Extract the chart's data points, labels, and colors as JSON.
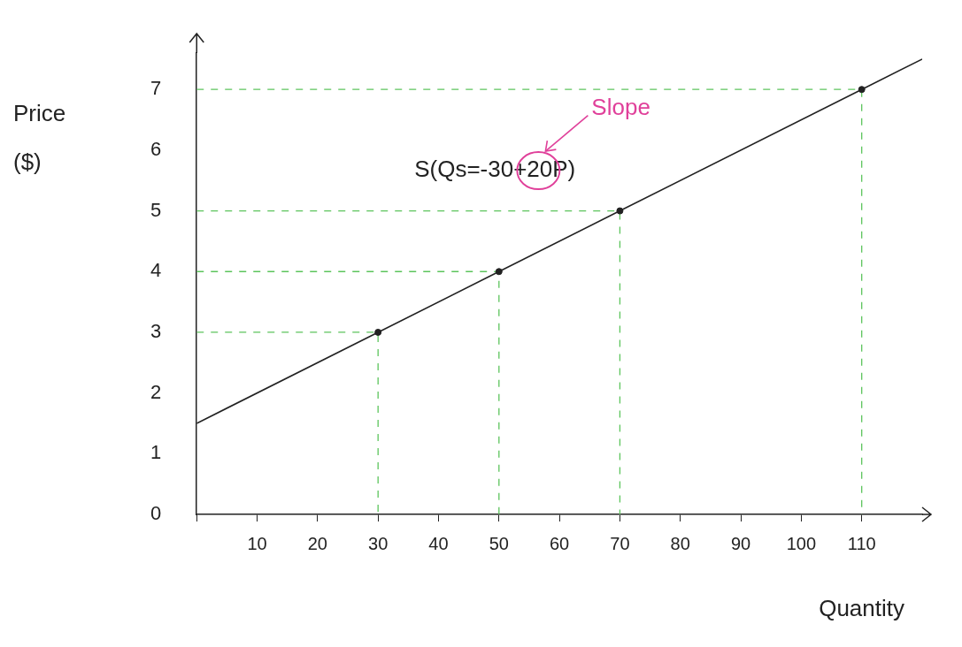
{
  "chart_data": {
    "type": "line",
    "xlabel": "Quantity",
    "ylabel": "Price ($)",
    "annotations": [
      "S(Qs=-30+20P)",
      "Slope"
    ],
    "xlim": [
      0,
      120
    ],
    "ylim": [
      0,
      7.6
    ],
    "xticks": [
      {
        "value": 0,
        "label": null
      },
      10,
      20,
      30,
      40,
      50,
      60,
      70,
      80,
      90,
      100,
      110
    ],
    "yticks": [
      0,
      1,
      2,
      3,
      4,
      5,
      6,
      7
    ],
    "grid": false,
    "legend": false,
    "marker": "none",
    "line_style": "solid",
    "series": [
      {
        "color": "#222222",
        "x": [
          0,
          30,
          50,
          70,
          110,
          120
        ],
        "values": [
          1.5,
          3,
          4,
          5,
          7,
          7.5
        ]
      },
      {
        "type": "scatter",
        "marker": "circle",
        "color": "#222222",
        "x": [
          30,
          50,
          70,
          110
        ],
        "values": [
          3,
          4,
          5,
          7
        ]
      },
      {
        "color": "#5cc45c",
        "line_style": "dashed",
        "x": [
          0,
          30,
          30
        ],
        "values": [
          3,
          3,
          0
        ]
      },
      {
        "color": "#5cc45c",
        "line_style": "dashed",
        "x": [
          0,
          50,
          50
        ],
        "values": [
          4,
          4,
          0
        ]
      },
      {
        "color": "#5cc45c",
        "line_style": "dashed",
        "x": [
          0,
          70,
          70
        ],
        "values": [
          5,
          5,
          0
        ]
      },
      {
        "color": "#5cc45c",
        "line_style": "dashed",
        "x": [
          0,
          110,
          110
        ],
        "values": [
          7,
          7,
          0
        ]
      }
    ]
  }
}
